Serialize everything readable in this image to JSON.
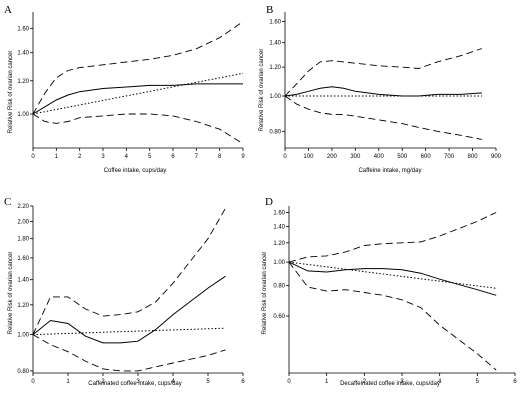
{
  "chart_data": [
    {
      "panel": "A",
      "type": "line",
      "scale": "log-y",
      "xlabel": "Coffee intake, cups/day",
      "ylabel": "Relative Risk of ovarian cancer",
      "xticks": [
        "0",
        "1",
        "2",
        "3",
        "4",
        "5",
        "6",
        "7",
        "8",
        "9"
      ],
      "yticks": [
        "1.00",
        "1.20",
        "1.40",
        "1.60"
      ],
      "xlim": [
        0,
        9
      ],
      "ylim": [
        0.83,
        1.75
      ],
      "series": [
        {
          "style": "solid",
          "x": [
            0,
            0.5,
            1,
            1.5,
            2,
            3,
            4,
            5,
            6,
            7,
            8,
            9
          ],
          "y": [
            1.0,
            1.04,
            1.08,
            1.11,
            1.13,
            1.15,
            1.16,
            1.17,
            1.17,
            1.18,
            1.18,
            1.18
          ]
        },
        {
          "style": "dashed",
          "x": [
            0,
            0.5,
            1,
            1.5,
            2,
            3,
            4,
            5,
            6,
            7,
            8,
            9
          ],
          "y": [
            1.0,
            1.12,
            1.22,
            1.27,
            1.29,
            1.31,
            1.33,
            1.35,
            1.38,
            1.43,
            1.52,
            1.66
          ]
        },
        {
          "style": "dashed",
          "x": [
            0,
            0.5,
            1,
            1.5,
            2,
            3,
            4,
            5,
            6,
            7,
            8,
            9
          ],
          "y": [
            1.0,
            0.96,
            0.95,
            0.96,
            0.98,
            0.99,
            1.0,
            1.0,
            0.99,
            0.96,
            0.92,
            0.85
          ]
        },
        {
          "style": "dotted",
          "x": [
            0,
            9
          ],
          "y": [
            1.0,
            1.25
          ]
        }
      ]
    },
    {
      "panel": "B",
      "type": "line",
      "scale": "log-y",
      "xlabel": "Caffeine intake, mg/day",
      "ylabel": "Relative Risk of ovarian cancer",
      "xticks": [
        "0",
        "100",
        "200",
        "300",
        "400",
        "500",
        "600",
        "700",
        "800",
        "900"
      ],
      "yticks": [
        "0.80",
        "1.00",
        "1.20",
        "1.40",
        "1.60"
      ],
      "xlim": [
        0,
        900
      ],
      "ylim": [
        0.72,
        1.7
      ],
      "series": [
        {
          "style": "solid",
          "x": [
            0,
            50,
            100,
            150,
            200,
            250,
            300,
            400,
            500,
            570,
            650,
            750,
            840
          ],
          "y": [
            1.0,
            1.01,
            1.03,
            1.05,
            1.06,
            1.05,
            1.03,
            1.01,
            1.0,
            1.0,
            1.01,
            1.01,
            1.02
          ]
        },
        {
          "style": "dashed",
          "x": [
            0,
            50,
            100,
            150,
            200,
            250,
            300,
            400,
            500,
            570,
            650,
            750,
            840
          ],
          "y": [
            1.0,
            1.08,
            1.17,
            1.24,
            1.25,
            1.24,
            1.23,
            1.21,
            1.2,
            1.19,
            1.24,
            1.29,
            1.35
          ]
        },
        {
          "style": "dashed",
          "x": [
            0,
            50,
            100,
            150,
            200,
            250,
            300,
            400,
            500,
            570,
            650,
            750,
            840
          ],
          "y": [
            1.0,
            0.95,
            0.92,
            0.9,
            0.89,
            0.89,
            0.88,
            0.86,
            0.84,
            0.82,
            0.8,
            0.78,
            0.76
          ]
        },
        {
          "style": "dotted",
          "x": [
            0,
            840
          ],
          "y": [
            1.0,
            1.0
          ]
        }
      ]
    },
    {
      "panel": "C",
      "type": "line",
      "scale": "log-y",
      "xlabel": "Caffeinated coffee intake, cups/day",
      "ylabel": "Relative Risk of ovarian cancer",
      "xticks": [
        "0",
        "1",
        "2",
        "3",
        "4",
        "5",
        "6"
      ],
      "yticks": [
        "0.80",
        "1.00",
        "1.20",
        "1.40",
        "1.60",
        "1.80",
        "2.00",
        "2.20"
      ],
      "xlim": [
        0,
        6
      ],
      "ylim": [
        0.79,
        2.2
      ],
      "series": [
        {
          "style": "solid",
          "x": [
            0,
            0.5,
            1,
            1.5,
            2,
            2.5,
            3,
            3.5,
            4,
            5,
            5.5
          ],
          "y": [
            1.0,
            1.09,
            1.07,
            0.99,
            0.95,
            0.95,
            0.96,
            1.03,
            1.13,
            1.33,
            1.43
          ]
        },
        {
          "style": "dashed",
          "x": [
            0,
            0.5,
            1,
            1.5,
            2,
            2.5,
            3,
            3.5,
            4,
            5,
            5.5
          ],
          "y": [
            1.0,
            1.26,
            1.26,
            1.17,
            1.12,
            1.13,
            1.15,
            1.22,
            1.37,
            1.8,
            2.17
          ]
        },
        {
          "style": "dashed",
          "x": [
            0,
            0.5,
            1,
            1.5,
            2,
            2.5,
            3,
            3.5,
            4,
            5,
            5.5
          ],
          "y": [
            1.0,
            0.94,
            0.9,
            0.85,
            0.81,
            0.8,
            0.8,
            0.82,
            0.84,
            0.88,
            0.91
          ]
        },
        {
          "style": "dotted",
          "x": [
            0,
            5.5
          ],
          "y": [
            1.0,
            1.04
          ]
        }
      ]
    },
    {
      "panel": "D",
      "type": "line",
      "scale": "log-y",
      "xlabel": "Decaffeinated coffee intake, cups/day",
      "ylabel": "Relative Risk of ovarian cancer",
      "xticks": [
        "0",
        "1",
        "2",
        "3",
        "4",
        "5",
        "6"
      ],
      "yticks": [
        "0.60",
        "0.80",
        "1.00",
        "1.20",
        "1.40",
        "1.60"
      ],
      "xlim": [
        0,
        6
      ],
      "ylim": [
        0.35,
        1.7
      ],
      "series": [
        {
          "style": "solid",
          "x": [
            0,
            0.5,
            1,
            1.5,
            2,
            2.5,
            3,
            3.5,
            4,
            5,
            5.5
          ],
          "y": [
            1.0,
            0.92,
            0.91,
            0.93,
            0.94,
            0.94,
            0.93,
            0.9,
            0.85,
            0.77,
            0.73
          ]
        },
        {
          "style": "dashed",
          "x": [
            0,
            0.5,
            1,
            1.5,
            2,
            2.5,
            3,
            3.5,
            4,
            5,
            5.5
          ],
          "y": [
            1.0,
            1.05,
            1.06,
            1.1,
            1.17,
            1.19,
            1.2,
            1.21,
            1.28,
            1.47,
            1.6
          ]
        },
        {
          "style": "dashed",
          "x": [
            0,
            0.5,
            1,
            1.5,
            2,
            2.5,
            3,
            3.5,
            4,
            5,
            5.5
          ],
          "y": [
            1.0,
            0.79,
            0.76,
            0.77,
            0.75,
            0.73,
            0.7,
            0.65,
            0.55,
            0.42,
            0.36
          ]
        },
        {
          "style": "dotted",
          "x": [
            0,
            5.5
          ],
          "y": [
            1.0,
            0.78
          ]
        }
      ]
    }
  ]
}
